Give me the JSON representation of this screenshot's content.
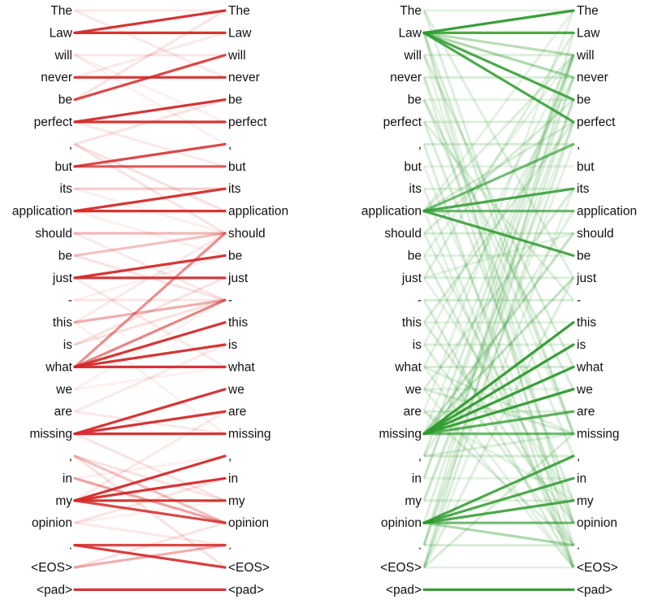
{
  "tokens": [
    "The",
    "Law",
    "will",
    "never",
    "be",
    "perfect",
    ",",
    "but",
    "its",
    "application",
    "should",
    "be",
    "just",
    "-",
    "this",
    "is",
    "what",
    "we",
    "are",
    "missing",
    ",",
    "in",
    "my",
    "opinion",
    ".",
    "<EOS>",
    "<pad>"
  ],
  "panels": [
    {
      "color": "#d42a2a",
      "strong_links": [
        [
          1,
          0,
          1.0
        ],
        [
          1,
          1,
          1.0
        ],
        [
          3,
          3,
          1.0
        ],
        [
          4,
          2,
          0.9
        ],
        [
          5,
          4,
          1.0
        ],
        [
          5,
          5,
          1.0
        ],
        [
          7,
          6,
          0.9
        ],
        [
          7,
          7,
          0.8
        ],
        [
          9,
          8,
          1.0
        ],
        [
          9,
          9,
          1.0
        ],
        [
          12,
          11,
          1.0
        ],
        [
          12,
          12,
          1.0
        ],
        [
          16,
          14,
          1.0
        ],
        [
          16,
          15,
          1.0
        ],
        [
          16,
          16,
          1.0
        ],
        [
          16,
          13,
          0.6
        ],
        [
          16,
          10,
          0.55
        ],
        [
          19,
          17,
          1.0
        ],
        [
          19,
          18,
          1.0
        ],
        [
          19,
          19,
          1.0
        ],
        [
          22,
          20,
          1.0
        ],
        [
          22,
          21,
          1.0
        ],
        [
          22,
          22,
          1.0
        ],
        [
          22,
          23,
          0.9
        ],
        [
          24,
          24,
          0.9
        ],
        [
          24,
          25,
          0.95
        ],
        [
          26,
          26,
          1.0
        ],
        [
          25,
          24,
          0.4
        ],
        [
          14,
          13,
          0.4
        ],
        [
          21,
          23,
          0.45
        ],
        [
          20,
          23,
          0.3
        ],
        [
          10,
          10,
          0.35
        ],
        [
          11,
          10,
          0.3
        ],
        [
          6,
          9,
          0.15
        ],
        [
          8,
          8,
          0.25
        ],
        [
          13,
          13,
          0.12
        ],
        [
          15,
          13,
          0.15
        ],
        [
          2,
          2,
          0.12
        ],
        [
          0,
          0,
          0.1
        ]
      ],
      "faint_links": [
        [
          2,
          5
        ],
        [
          0,
          3
        ],
        [
          6,
          4
        ],
        [
          8,
          10
        ],
        [
          10,
          13
        ],
        [
          11,
          13
        ],
        [
          13,
          11
        ],
        [
          14,
          10
        ],
        [
          15,
          12
        ],
        [
          17,
          16
        ],
        [
          18,
          19
        ],
        [
          20,
          22
        ],
        [
          21,
          20
        ],
        [
          23,
          24
        ],
        [
          25,
          23
        ],
        [
          17,
          13
        ],
        [
          18,
          15
        ],
        [
          20,
          25
        ],
        [
          23,
          22
        ],
        [
          3,
          1
        ],
        [
          4,
          0
        ],
        [
          2,
          6
        ],
        [
          5,
          7
        ],
        [
          6,
          10
        ],
        [
          9,
          11
        ],
        [
          12,
          16
        ],
        [
          19,
          22
        ],
        [
          14,
          19
        ],
        [
          22,
          18
        ],
        [
          23,
          21
        ]
      ]
    },
    {
      "color": "#2e9a2e",
      "strong_links": [
        [
          1,
          0,
          1.0
        ],
        [
          1,
          1,
          0.9
        ],
        [
          1,
          4,
          0.9
        ],
        [
          1,
          5,
          0.9
        ],
        [
          9,
          6,
          0.7
        ],
        [
          9,
          8,
          0.9
        ],
        [
          9,
          11,
          0.9
        ],
        [
          9,
          9,
          0.7
        ],
        [
          19,
          14,
          1.0
        ],
        [
          19,
          15,
          1.0
        ],
        [
          19,
          16,
          1.0
        ],
        [
          19,
          17,
          1.0
        ],
        [
          19,
          18,
          0.8
        ],
        [
          19,
          19,
          0.7
        ],
        [
          23,
          20,
          0.9
        ],
        [
          23,
          21,
          0.9
        ],
        [
          23,
          22,
          0.9
        ],
        [
          23,
          23,
          0.7
        ],
        [
          26,
          26,
          1.0
        ],
        [
          19,
          12,
          0.3
        ],
        [
          19,
          10,
          0.3
        ],
        [
          23,
          24,
          0.4
        ],
        [
          1,
          2,
          0.35
        ],
        [
          1,
          3,
          0.4
        ]
      ],
      "faint_links": [
        [
          0,
          0
        ],
        [
          2,
          2
        ],
        [
          3,
          3
        ],
        [
          4,
          4
        ],
        [
          5,
          5
        ],
        [
          6,
          6
        ],
        [
          7,
          7
        ],
        [
          8,
          8
        ],
        [
          10,
          10
        ],
        [
          11,
          11
        ],
        [
          12,
          12
        ],
        [
          13,
          13
        ],
        [
          14,
          14
        ],
        [
          15,
          15
        ],
        [
          16,
          16
        ],
        [
          17,
          17
        ],
        [
          18,
          18
        ],
        [
          20,
          20
        ],
        [
          21,
          21
        ],
        [
          22,
          22
        ],
        [
          24,
          24
        ],
        [
          25,
          25
        ],
        [
          0,
          12
        ],
        [
          1,
          19
        ],
        [
          1,
          23
        ],
        [
          1,
          25
        ],
        [
          2,
          16
        ],
        [
          3,
          19
        ],
        [
          4,
          20
        ],
        [
          5,
          22
        ],
        [
          7,
          23
        ],
        [
          8,
          25
        ],
        [
          10,
          4
        ],
        [
          11,
          2
        ],
        [
          12,
          1
        ],
        [
          14,
          5
        ],
        [
          15,
          2
        ],
        [
          16,
          3
        ],
        [
          17,
          8
        ],
        [
          18,
          0
        ],
        [
          20,
          9
        ],
        [
          21,
          2
        ],
        [
          22,
          5
        ],
        [
          24,
          1
        ],
        [
          25,
          2
        ],
        [
          25,
          8
        ],
        [
          25,
          12
        ],
        [
          25,
          19
        ],
        [
          24,
          6
        ],
        [
          3,
          24
        ],
        [
          6,
          25
        ],
        [
          2,
          23
        ],
        [
          0,
          19
        ],
        [
          13,
          25
        ],
        [
          12,
          22
        ],
        [
          10,
          23
        ],
        [
          11,
          24
        ],
        [
          9,
          25
        ],
        [
          5,
          13
        ],
        [
          4,
          17
        ],
        [
          16,
          25
        ],
        [
          15,
          24
        ],
        [
          14,
          23
        ],
        [
          17,
          25
        ],
        [
          18,
          24
        ],
        [
          20,
          2
        ],
        [
          21,
          3
        ],
        [
          22,
          4
        ],
        [
          25,
          5
        ],
        [
          19,
          2
        ],
        [
          23,
          3
        ],
        [
          24,
          4
        ],
        [
          9,
          0
        ],
        [
          9,
          2
        ],
        [
          9,
          5
        ],
        [
          12,
          10
        ],
        [
          16,
          19
        ],
        [
          17,
          19
        ],
        [
          18,
          22
        ],
        [
          20,
          19
        ]
      ]
    }
  ]
}
